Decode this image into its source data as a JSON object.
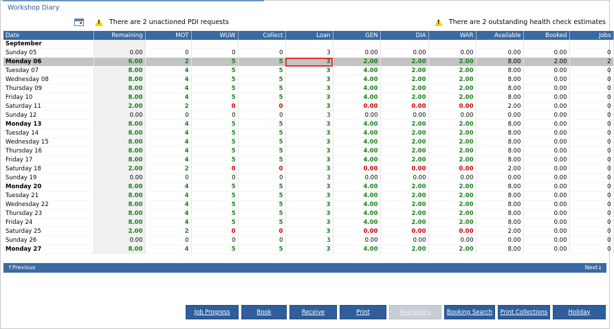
{
  "header": {
    "title": "Workshop Diary"
  },
  "alerts": {
    "left_text": "There are 2 unactioned PDI requests",
    "right_text": "There are 2 outstanding health check estimates"
  },
  "table": {
    "columns": [
      "Date",
      "Remaining",
      "MOT",
      "WUW",
      "Collect",
      "Loan",
      "GEN",
      "DIA",
      "WAR",
      "Available",
      "Booked",
      "Jobs"
    ],
    "month": "September",
    "rows": [
      {
        "kind": "weekend",
        "cells": [
          "Sunday 05",
          "0.00",
          "0",
          "0",
          "0",
          "3",
          "0.00",
          "0.00",
          "0.00",
          "0.00",
          "0.00",
          "0"
        ]
      },
      {
        "kind": "selected",
        "cells": [
          "Monday 06",
          "6.00",
          "2",
          "5",
          "5",
          "3",
          "2.00",
          "2.00",
          "2.00",
          "8.00",
          "2.00",
          "2"
        ]
      },
      {
        "kind": "weekday",
        "cells": [
          "Tuesday 07",
          "8.00",
          "4",
          "5",
          "5",
          "3",
          "4.00",
          "2.00",
          "2.00",
          "8.00",
          "0.00",
          "0"
        ]
      },
      {
        "kind": "weekday",
        "cells": [
          "Wednesday 08",
          "8.00",
          "4",
          "5",
          "5",
          "3",
          "4.00",
          "2.00",
          "2.00",
          "8.00",
          "0.00",
          "0"
        ]
      },
      {
        "kind": "weekday",
        "cells": [
          "Thursday 09",
          "8.00",
          "4",
          "5",
          "5",
          "3",
          "4.00",
          "2.00",
          "2.00",
          "8.00",
          "0.00",
          "0"
        ]
      },
      {
        "kind": "weekday",
        "cells": [
          "Friday 10",
          "8.00",
          "4",
          "5",
          "5",
          "3",
          "4.00",
          "2.00",
          "2.00",
          "8.00",
          "0.00",
          "0"
        ]
      },
      {
        "kind": "saturday",
        "cells": [
          "Saturday 11",
          "2.00",
          "2",
          "0",
          "0",
          "3",
          "0.00",
          "0.00",
          "0.00",
          "2.00",
          "0.00",
          "0"
        ]
      },
      {
        "kind": "weekend",
        "cells": [
          "Sunday 12",
          "0.00",
          "0",
          "0",
          "0",
          "3",
          "0.00",
          "0.00",
          "0.00",
          "0.00",
          "0.00",
          "0"
        ]
      },
      {
        "kind": "monday",
        "cells": [
          "Monday 13",
          "8.00",
          "4",
          "5",
          "5",
          "3",
          "4.00",
          "2.00",
          "2.00",
          "8.00",
          "0.00",
          "0"
        ]
      },
      {
        "kind": "weekday",
        "cells": [
          "Tuesday 14",
          "8.00",
          "4",
          "5",
          "5",
          "3",
          "4.00",
          "2.00",
          "2.00",
          "8.00",
          "0.00",
          "0"
        ]
      },
      {
        "kind": "weekday",
        "cells": [
          "Wednesday 15",
          "8.00",
          "4",
          "5",
          "5",
          "3",
          "4.00",
          "2.00",
          "2.00",
          "8.00",
          "0.00",
          "0"
        ]
      },
      {
        "kind": "weekday",
        "cells": [
          "Thursday 16",
          "8.00",
          "4",
          "5",
          "5",
          "3",
          "4.00",
          "2.00",
          "2.00",
          "8.00",
          "0.00",
          "0"
        ]
      },
      {
        "kind": "weekday",
        "cells": [
          "Friday 17",
          "8.00",
          "4",
          "5",
          "5",
          "3",
          "4.00",
          "2.00",
          "2.00",
          "8.00",
          "0.00",
          "0"
        ]
      },
      {
        "kind": "saturday",
        "cells": [
          "Saturday 18",
          "2.00",
          "2",
          "0",
          "0",
          "3",
          "0.00",
          "0.00",
          "0.00",
          "2.00",
          "0.00",
          "0"
        ]
      },
      {
        "kind": "weekend",
        "cells": [
          "Sunday 19",
          "0.00",
          "0",
          "0",
          "0",
          "3",
          "0.00",
          "0.00",
          "0.00",
          "0.00",
          "0.00",
          "0"
        ]
      },
      {
        "kind": "monday",
        "cells": [
          "Monday 20",
          "8.00",
          "4",
          "5",
          "5",
          "3",
          "4.00",
          "2.00",
          "2.00",
          "8.00",
          "0.00",
          "0"
        ]
      },
      {
        "kind": "weekday",
        "cells": [
          "Tuesday 21",
          "8.00",
          "4",
          "5",
          "5",
          "3",
          "4.00",
          "2.00",
          "2.00",
          "8.00",
          "0.00",
          "0"
        ]
      },
      {
        "kind": "weekday",
        "cells": [
          "Wednesday 22",
          "8.00",
          "4",
          "5",
          "5",
          "3",
          "4.00",
          "2.00",
          "2.00",
          "8.00",
          "0.00",
          "0"
        ]
      },
      {
        "kind": "weekday",
        "cells": [
          "Thursday 23",
          "8.00",
          "4",
          "5",
          "5",
          "3",
          "4.00",
          "2.00",
          "2.00",
          "8.00",
          "0.00",
          "0"
        ]
      },
      {
        "kind": "weekday",
        "cells": [
          "Friday 24",
          "8.00",
          "4",
          "5",
          "5",
          "3",
          "4.00",
          "2.00",
          "2.00",
          "8.00",
          "0.00",
          "0"
        ]
      },
      {
        "kind": "saturday",
        "cells": [
          "Saturday 25",
          "2.00",
          "2",
          "0",
          "0",
          "3",
          "0.00",
          "0.00",
          "0.00",
          "2.00",
          "0.00",
          "0"
        ]
      },
      {
        "kind": "weekend",
        "cells": [
          "Sunday 26",
          "0.00",
          "0",
          "0",
          "0",
          "3",
          "0.00",
          "0.00",
          "0.00",
          "0.00",
          "0.00",
          "0"
        ]
      },
      {
        "kind": "monday",
        "cells": [
          "Monday 27",
          "8.00",
          "4",
          "5",
          "5",
          "3",
          "4.00",
          "2.00",
          "2.00",
          "8.00",
          "0.00",
          "0"
        ]
      }
    ]
  },
  "pager": {
    "previous": "↑Previous",
    "next": "Next↓"
  },
  "buttons": [
    {
      "label": "Job Progress",
      "enabled": true
    },
    {
      "label": "Book",
      "enabled": true
    },
    {
      "label": "Receive",
      "enabled": true
    },
    {
      "label": "Print",
      "enabled": true
    },
    {
      "label": "Availability",
      "enabled": false
    },
    {
      "label": "Booking Search",
      "enabled": true
    },
    {
      "label": "Print Collections",
      "enabled": true
    },
    {
      "label": "Holiday",
      "enabled": true
    }
  ]
}
